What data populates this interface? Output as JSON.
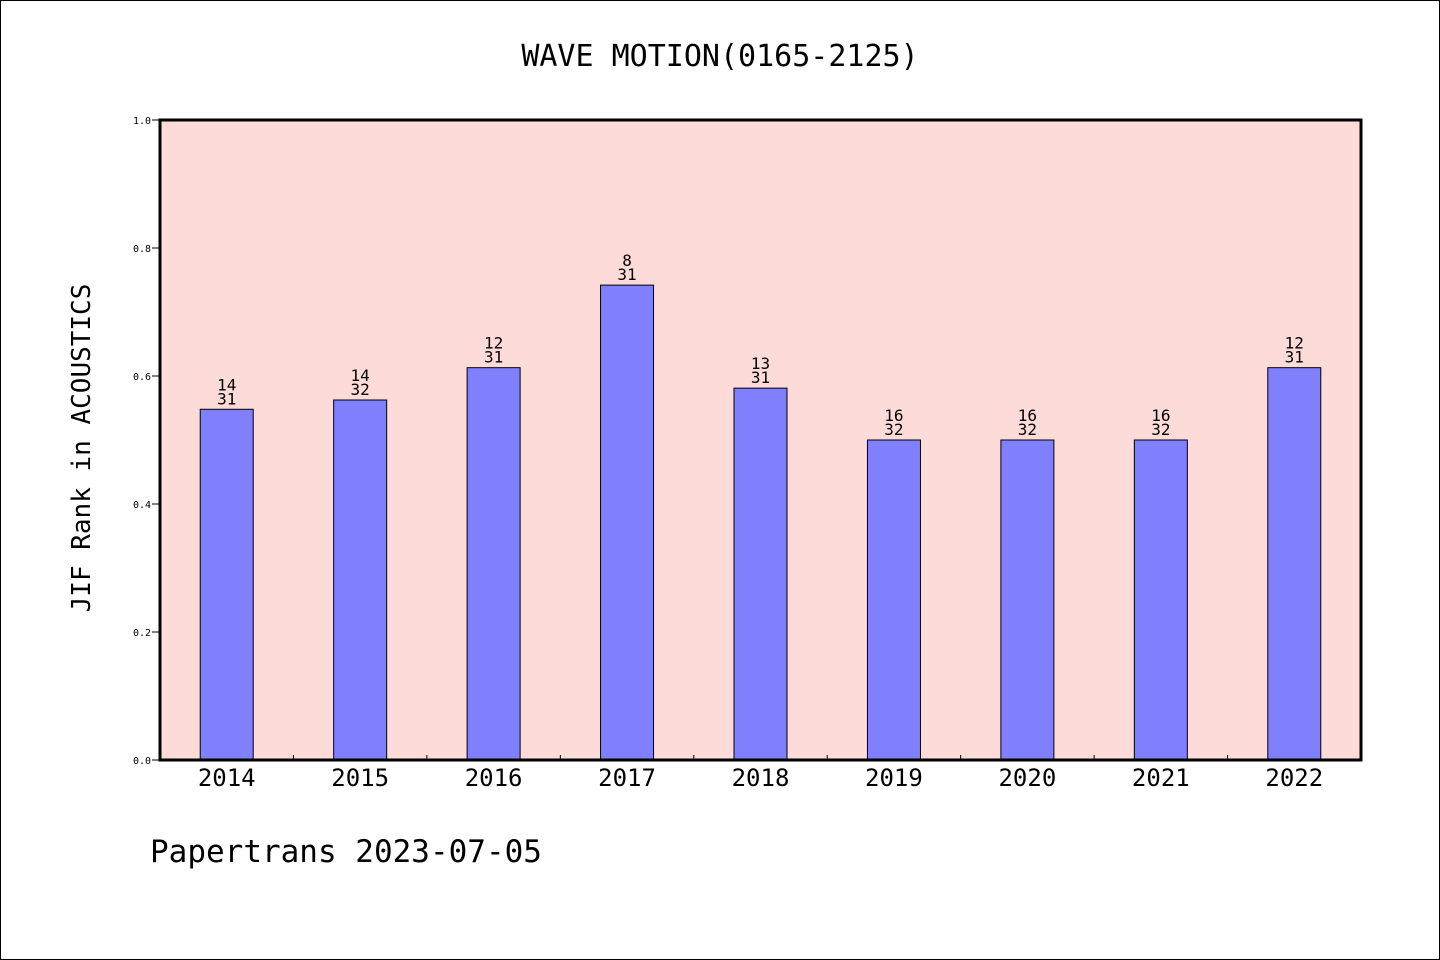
{
  "chart_data": {
    "type": "bar",
    "title": "WAVE MOTION(0165-2125)",
    "ylabel": "JIF Rank in ACOUSTICS",
    "xlabel": "",
    "categories": [
      "2014",
      "2015",
      "2016",
      "2017",
      "2018",
      "2019",
      "2020",
      "2021",
      "2022"
    ],
    "values": [
      0.548,
      0.5625,
      0.613,
      0.742,
      0.581,
      0.5,
      0.5,
      0.5,
      0.613
    ],
    "rank": [
      "14",
      "14",
      "12",
      "8",
      "13",
      "16",
      "16",
      "16",
      "12"
    ],
    "total": [
      "31",
      "32",
      "31",
      "31",
      "31",
      "32",
      "32",
      "32",
      "31"
    ],
    "ylim": [
      0,
      1.0
    ],
    "yticks": [
      "0.0",
      "0.2",
      "0.4",
      "0.6",
      "0.8",
      "1.0"
    ],
    "grid": false,
    "legend": "none",
    "colors": {
      "bar": "#8080ff",
      "plot_background": "#fddbd9"
    }
  },
  "footer": {
    "text": "Papertrans 2023-07-05"
  }
}
